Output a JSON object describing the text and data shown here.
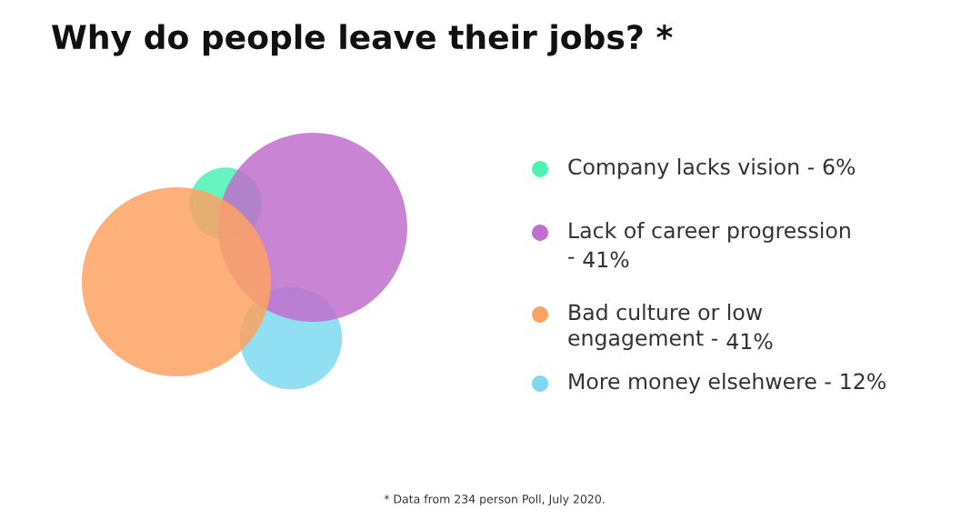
{
  "chart_data": {
    "type": "other",
    "title": "Why do people leave their jobs? *",
    "categories": [
      "Company lacks vision -",
      "Lack of career progression\n-",
      "Bad culture or low\nengagement -",
      "More money elsehwere -"
    ],
    "values": [
      6,
      41,
      41,
      12
    ],
    "value_labels": [
      "6%",
      "41%",
      "41%",
      "12%"
    ],
    "colors": [
      "#4ef2b5",
      "#bf6fcd",
      "#fda263",
      "#7ed9f0"
    ],
    "annotations": [
      "* Data from 234 person Poll, July 2020."
    ]
  }
}
